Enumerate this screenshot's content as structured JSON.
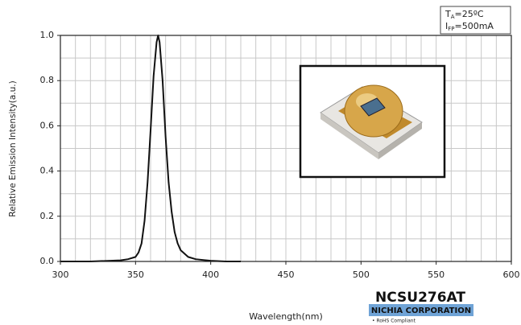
{
  "chart_data": {
    "type": "line",
    "x_label": "Wavelength(nm)",
    "y_label": "Relative Emission Intensity(a.u.)",
    "x": [
      300,
      320,
      340,
      345,
      350,
      352,
      354,
      356,
      358,
      360,
      362,
      364,
      365,
      366,
      368,
      370,
      372,
      374,
      376,
      378,
      380,
      385,
      390,
      400,
      410,
      420
    ],
    "values": [
      0,
      0,
      0.005,
      0.01,
      0.02,
      0.04,
      0.08,
      0.18,
      0.35,
      0.58,
      0.82,
      0.97,
      1.0,
      0.97,
      0.8,
      0.55,
      0.35,
      0.22,
      0.13,
      0.08,
      0.05,
      0.02,
      0.01,
      0.003,
      0,
      0
    ],
    "color": "#111111",
    "xlim": [
      300,
      600
    ],
    "ylim": [
      0,
      1.0
    ],
    "xticks": [
      300,
      350,
      400,
      450,
      500,
      550,
      600
    ],
    "yticks": [
      {
        "value": 0,
        "label": "0.0"
      },
      0.2,
      0.4,
      0.6,
      0.8,
      {
        "value": 1.0,
        "label": "1.0"
      }
    ],
    "xgrid": [
      310,
      320,
      330,
      340,
      350,
      360,
      370,
      380,
      390,
      400,
      410,
      420,
      430,
      440,
      450,
      460,
      470,
      480,
      490,
      500,
      510,
      520,
      530,
      540,
      550,
      560,
      570,
      580,
      590
    ],
    "ygrid": [
      0.1,
      0.2,
      0.3,
      0.4,
      0.5,
      0.6,
      0.7,
      0.8,
      0.9
    ],
    "grid": true,
    "conditions": [
      {
        "main": "T",
        "sub": "A",
        "rest": "=25ºC"
      },
      {
        "main": "I",
        "sub": "FP",
        "rest": "=500mA"
      }
    ],
    "product": "NCSU276AT",
    "company": "NICHIA CORPORATION",
    "note": "• RoHS Compliant"
  }
}
